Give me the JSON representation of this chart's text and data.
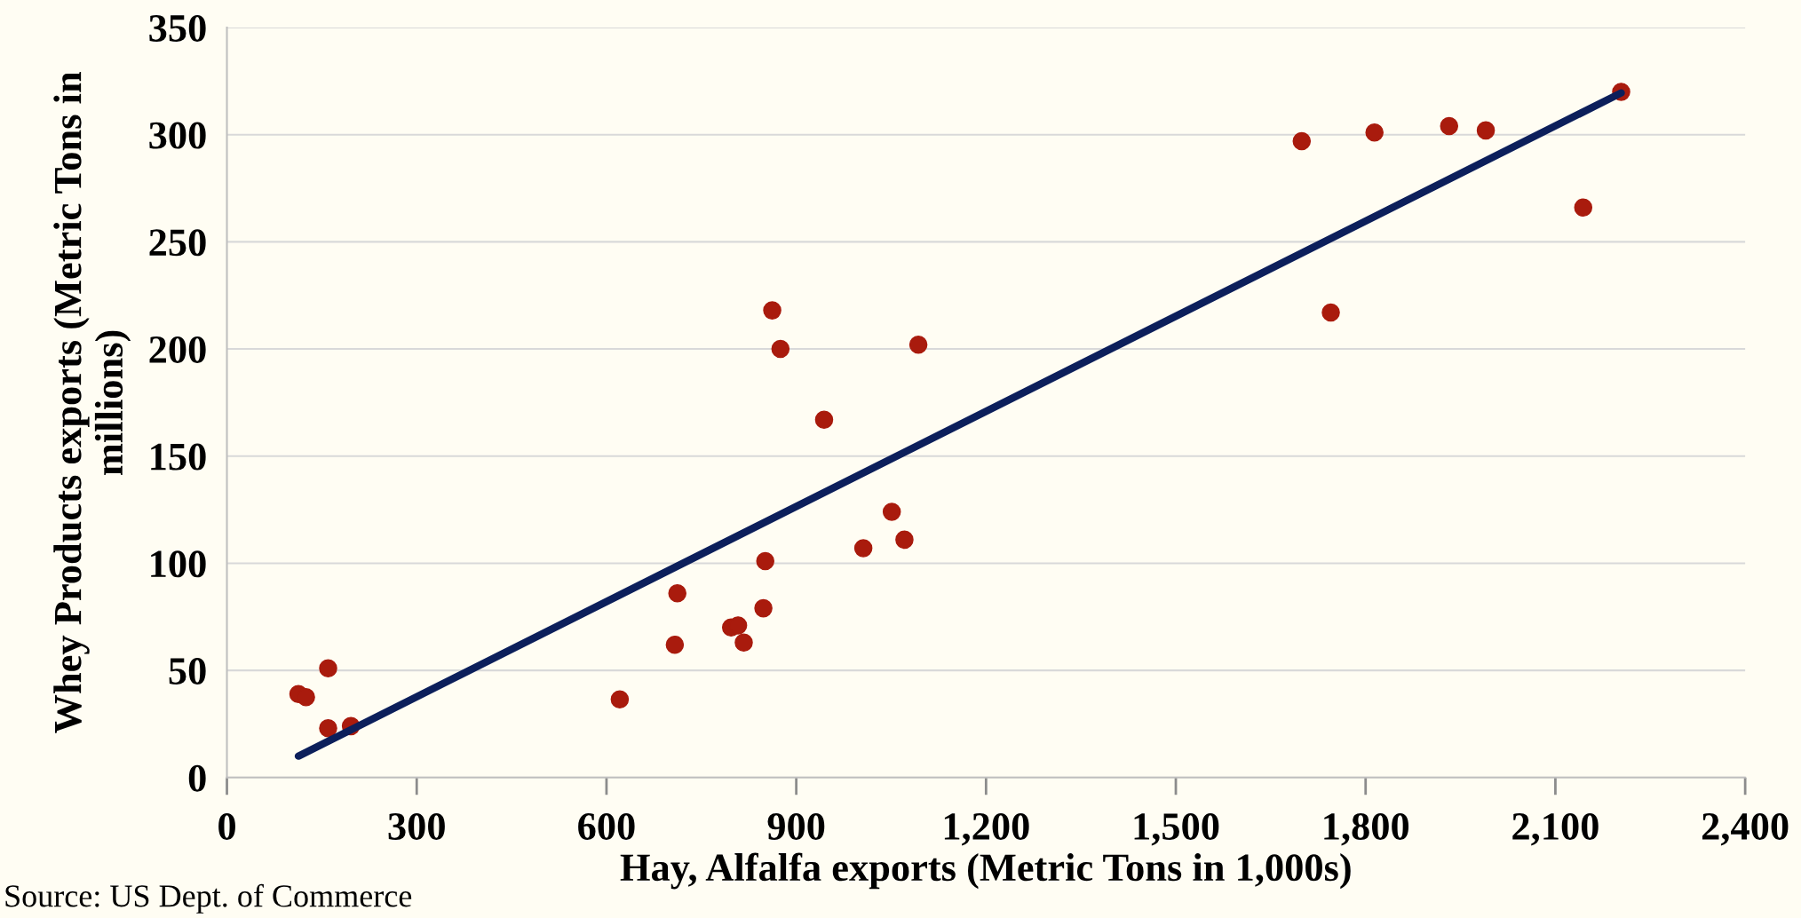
{
  "chart_data": {
    "type": "scatter",
    "xlabel": "Hay, Alfalfa exports (Metric Tons in 1,000s)",
    "ylabel": "Whey Products exports (Metric Tons in millions)",
    "annotations": [
      "Source: US Dept. of Commerce"
    ],
    "x": [
      113,
      125,
      160,
      160,
      196,
      621,
      708,
      712,
      797,
      808,
      817,
      848,
      851,
      862,
      875,
      944,
      1006,
      1051,
      1071,
      1093,
      1699,
      1745,
      1814,
      1932,
      1990,
      2144,
      2204
    ],
    "series": [
      {
        "marker": "circle",
        "color": "#a91b0d",
        "values": [
          39,
          37.5,
          51,
          23,
          24,
          36.5,
          62,
          86,
          70,
          71,
          63,
          79,
          101,
          218,
          200,
          167,
          107,
          124,
          111,
          202,
          297,
          217,
          301,
          304,
          302,
          266,
          320
        ]
      },
      {
        "type": "line",
        "color": "#0c1f5b",
        "x": [
          113,
          2204
        ],
        "values": [
          10,
          319.5
        ]
      }
    ],
    "xlim": [
      0,
      2400
    ],
    "ylim": [
      0,
      350
    ],
    "xticks": [
      0,
      300,
      600,
      900,
      {
        "value": 1200,
        "label": "1,200"
      },
      {
        "value": 1500,
        "label": "1,500"
      },
      {
        "value": 1800,
        "label": "1,800"
      },
      {
        "value": 2100,
        "label": "2,100"
      },
      {
        "value": 2400,
        "label": "2,400"
      }
    ],
    "yticks": [
      0,
      50,
      100,
      150,
      200,
      250,
      300,
      350
    ],
    "grid": "y",
    "line_style": "solid",
    "legend": false
  }
}
